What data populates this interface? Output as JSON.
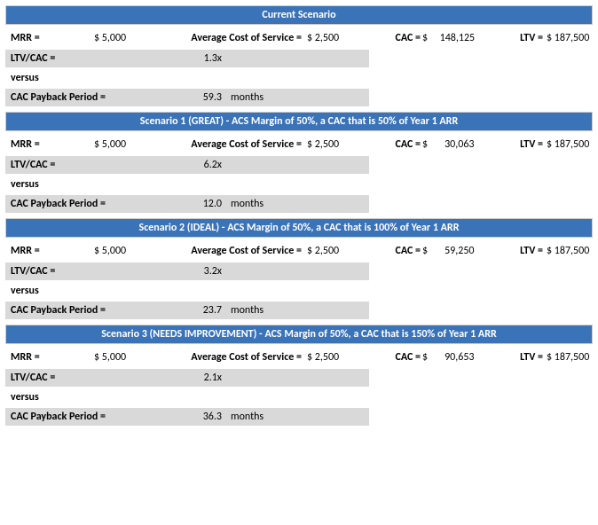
{
  "colors": {
    "header_bg": "#3b73b9",
    "header_text": "#ffffff",
    "grey_bg": "#d9d9d9",
    "page_bg": "#ffffff",
    "text": "#000000"
  },
  "labels": {
    "mrr": "MRR =",
    "acs": "Average Cost of Service =",
    "cac": "CAC =",
    "ltv": "LTV =",
    "ltv_cac": "LTV/CAC =",
    "versus": "versus",
    "payback": "CAC Payback Period =",
    "months": "months"
  },
  "scenarios": [
    {
      "title": "Current Scenario",
      "mrr": "$ 5,000",
      "acs": "$ 2,500",
      "cac": "$     148,125",
      "ltv": "$ 187,500",
      "ltv_cac": "1.3x",
      "payback": "59.3"
    },
    {
      "title": "Scenario 1 (GREAT) - ACS Margin of 50%, a CAC that is 50% of Year 1 ARR",
      "mrr": "$ 5,000",
      "acs": "$ 2,500",
      "cac": "$       30,063",
      "ltv": "$ 187,500",
      "ltv_cac": "6.2x",
      "payback": "12.0"
    },
    {
      "title": "Scenario 2 (IDEAL) - ACS Margin of 50%, a CAC that is 100% of Year 1 ARR",
      "mrr": "$ 5,000",
      "acs": "$ 2,500",
      "cac": "$       59,250",
      "ltv": "$ 187,500",
      "ltv_cac": "3.2x",
      "payback": "23.7"
    },
    {
      "title": "Scenario 3 (NEEDS IMPROVEMENT) - ACS Margin of 50%, a CAC that is 150% of Year 1 ARR",
      "mrr": "$ 5,000",
      "acs": "$ 2,500",
      "cac": "$       90,653",
      "ltv": "$ 187,500",
      "ltv_cac": "2.1x",
      "payback": "36.3"
    }
  ]
}
